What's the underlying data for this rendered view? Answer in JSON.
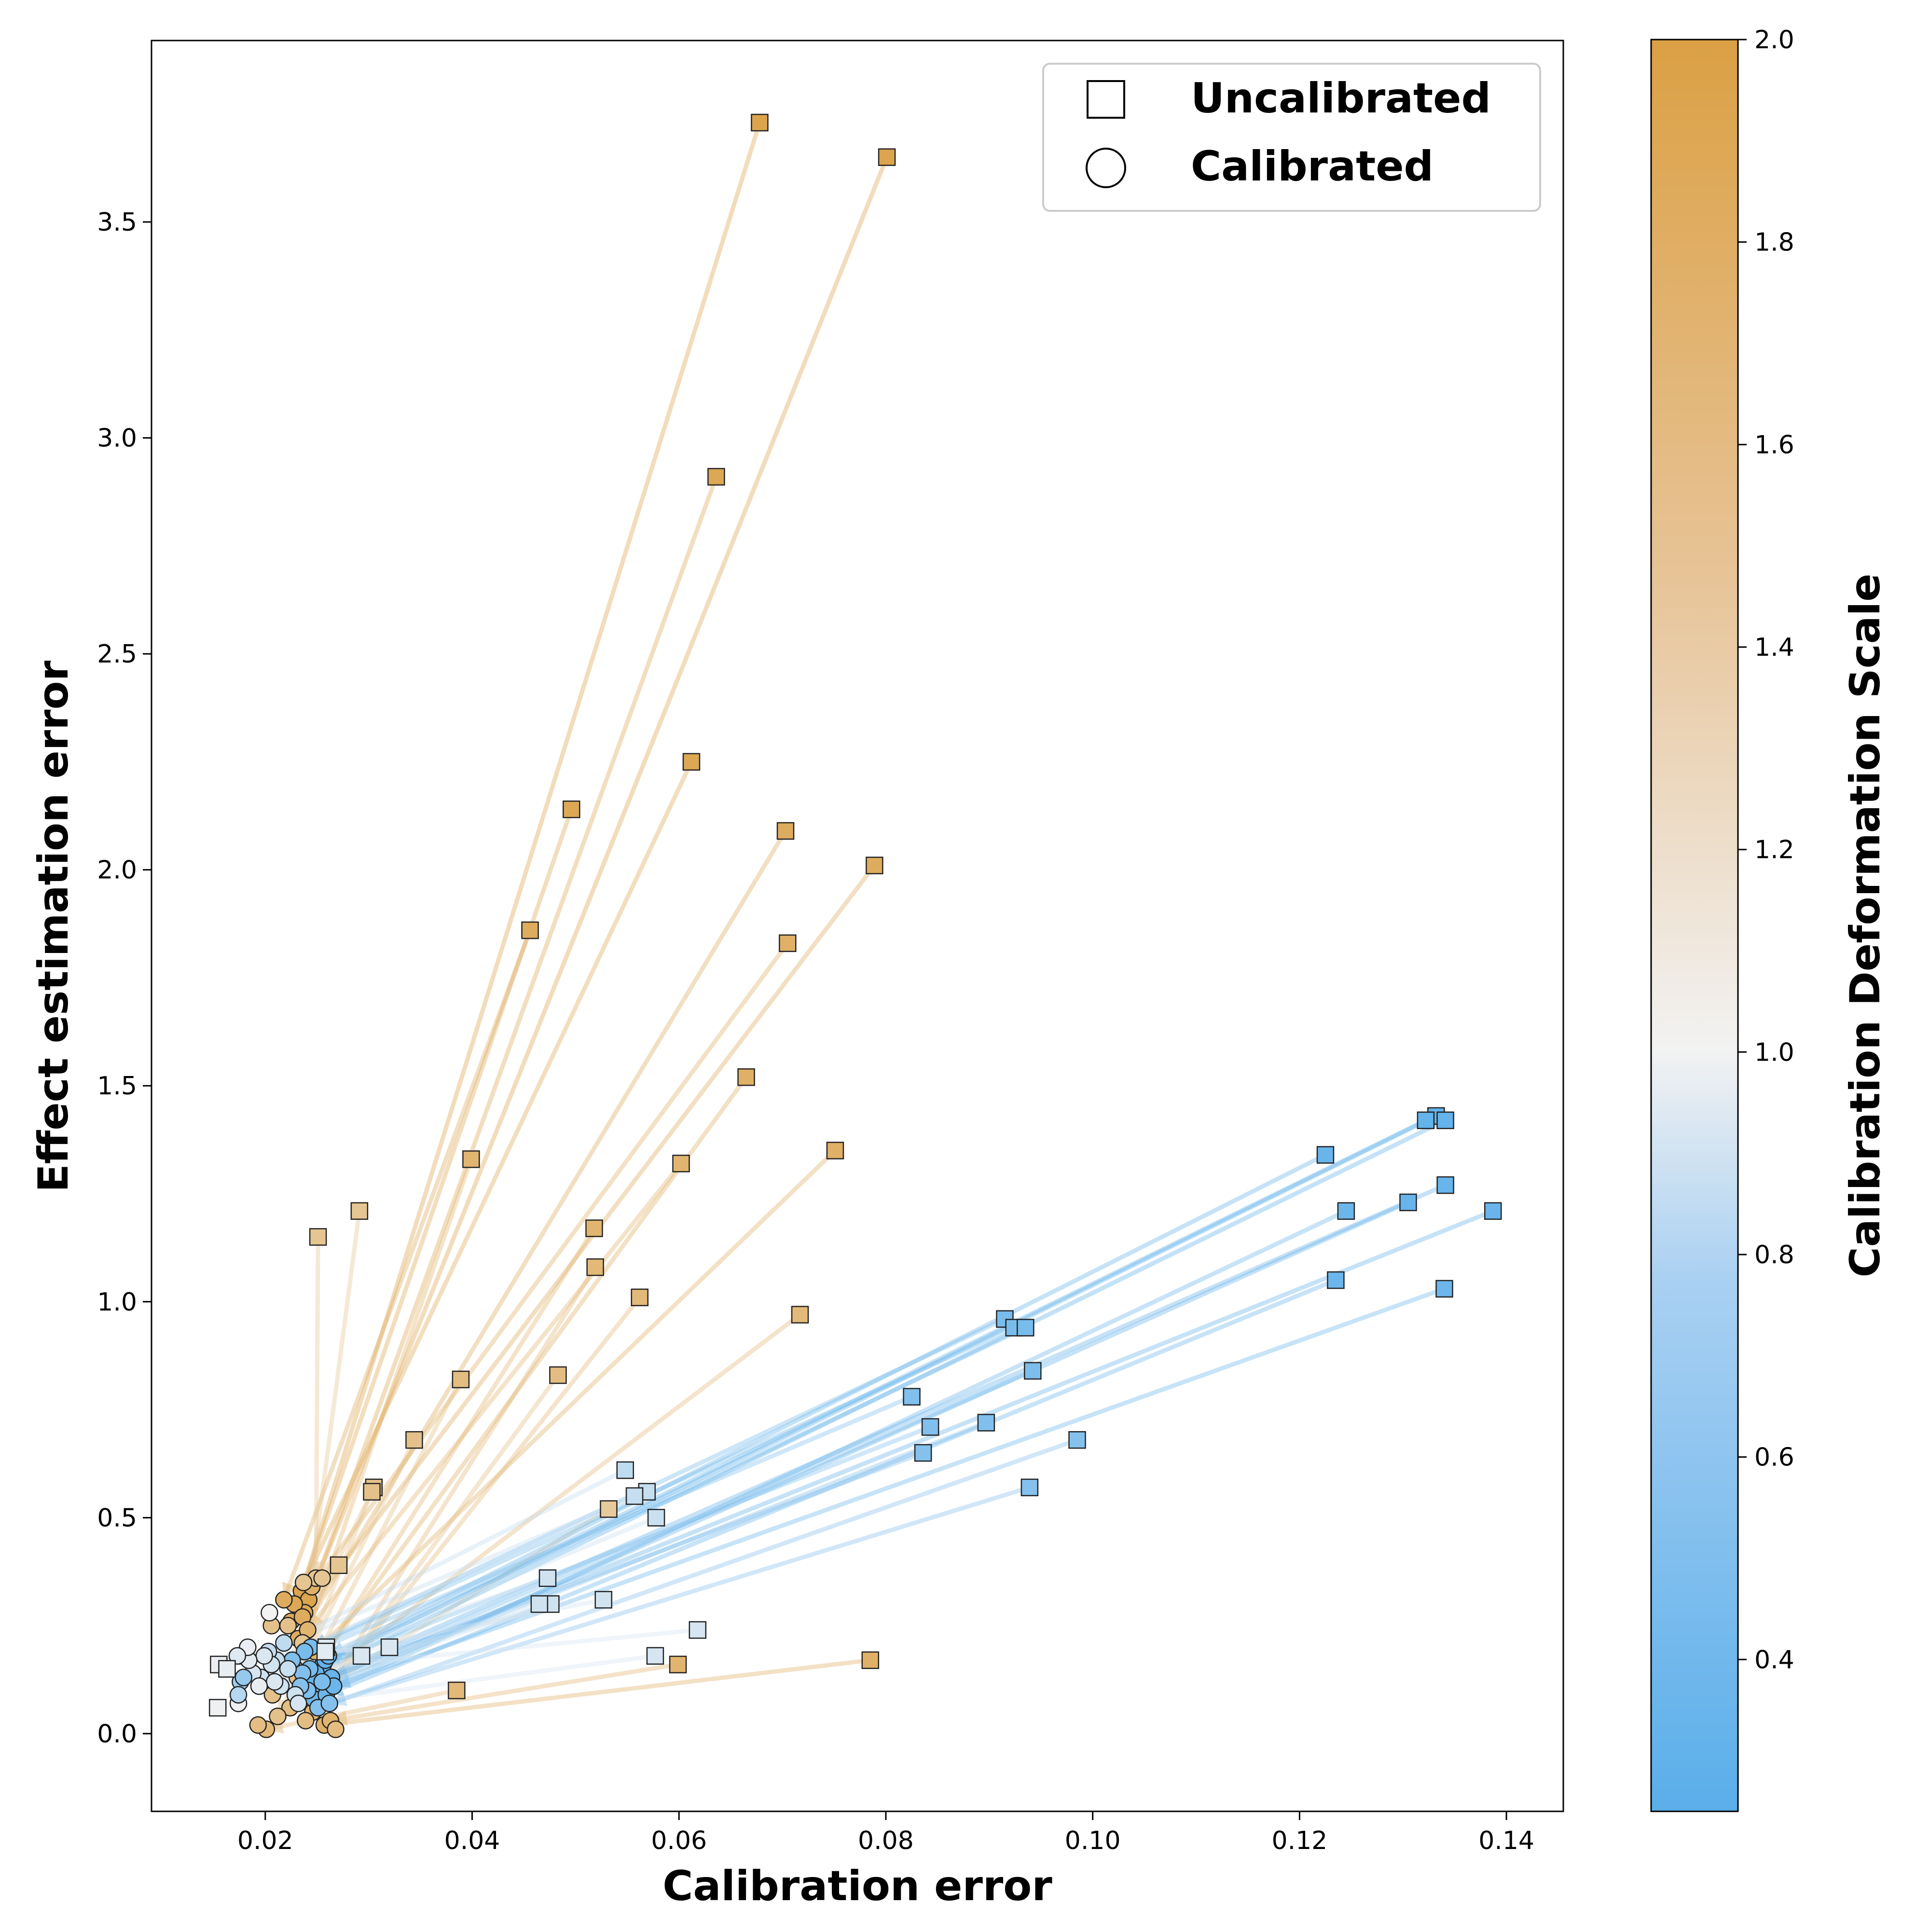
{
  "chart_data": {
    "type": "scatter",
    "xlabel": "Calibration error",
    "ylabel": "Effect estimation error",
    "xlim": [
      0.009,
      0.1455
    ],
    "ylim": [
      -0.18,
      3.92
    ],
    "xticks": [
      0.02,
      0.04,
      0.06,
      0.08,
      0.1,
      0.12,
      0.14
    ],
    "xtick_labels": [
      "0.02",
      "0.04",
      "0.06",
      "0.08",
      "0.10",
      "0.12",
      "0.14"
    ],
    "yticks": [
      0.0,
      0.5,
      1.0,
      1.5,
      2.0,
      2.5,
      3.0,
      3.5
    ],
    "ytick_labels": [
      "0.0",
      "0.5",
      "1.0",
      "1.5",
      "2.0",
      "2.5",
      "3.0",
      "3.5"
    ],
    "grid": false,
    "legend": {
      "placement": "top-right",
      "entries": [
        {
          "label": "Uncalibrated",
          "marker": "square"
        },
        {
          "label": "Calibrated",
          "marker": "circle"
        }
      ]
    },
    "colorbar": {
      "label": "Calibration Deformation Scale",
      "range": [
        0.25,
        2.0
      ],
      "ticks": [
        0.4,
        0.6,
        0.8,
        1.0,
        1.2,
        1.4,
        1.6,
        1.8,
        2.0
      ],
      "tick_labels": [
        "0.4",
        "0.6",
        "0.8",
        "1.0",
        "1.2",
        "1.4",
        "1.6",
        "1.8",
        "2.0"
      ],
      "colors": {
        "low": "#5aaeea",
        "mid": "#f2f2f2",
        "high": "#dba044"
      }
    },
    "pairs": [
      {
        "scale": 1.95,
        "uncal": [
          0.0678,
          3.73
        ],
        "cal": [
          0.0235,
          0.33
        ]
      },
      {
        "scale": 1.95,
        "uncal": [
          0.0801,
          3.65
        ],
        "cal": [
          0.0242,
          0.31
        ]
      },
      {
        "scale": 1.9,
        "uncal": [
          0.0636,
          2.91
        ],
        "cal": [
          0.0238,
          0.28
        ]
      },
      {
        "scale": 1.9,
        "uncal": [
          0.0612,
          2.25
        ],
        "cal": [
          0.0228,
          0.3
        ]
      },
      {
        "scale": 1.9,
        "uncal": [
          0.0496,
          2.14
        ],
        "cal": [
          0.0225,
          0.26
        ]
      },
      {
        "scale": 1.85,
        "uncal": [
          0.0703,
          2.09
        ],
        "cal": [
          0.0232,
          0.22
        ]
      },
      {
        "scale": 1.85,
        "uncal": [
          0.0789,
          2.01
        ],
        "cal": [
          0.0236,
          0.27
        ]
      },
      {
        "scale": 1.85,
        "uncal": [
          0.0456,
          1.86
        ],
        "cal": [
          0.0218,
          0.31
        ]
      },
      {
        "scale": 1.8,
        "uncal": [
          0.0705,
          1.83
        ],
        "cal": [
          0.0245,
          0.34
        ]
      },
      {
        "scale": 1.8,
        "uncal": [
          0.0665,
          1.52
        ],
        "cal": [
          0.0238,
          0.12
        ]
      },
      {
        "scale": 1.8,
        "uncal": [
          0.0751,
          1.35
        ],
        "cal": [
          0.0248,
          0.19
        ]
      },
      {
        "scale": 1.75,
        "uncal": [
          0.0399,
          1.33
        ],
        "cal": [
          0.0229,
          0.15
        ]
      },
      {
        "scale": 1.75,
        "uncal": [
          0.0602,
          1.32
        ],
        "cal": [
          0.0241,
          0.24
        ]
      },
      {
        "scale": 1.75,
        "uncal": [
          0.0518,
          1.17
        ],
        "cal": [
          0.0233,
          0.09
        ]
      },
      {
        "scale": 1.7,
        "uncal": [
          0.0519,
          1.08
        ],
        "cal": [
          0.0246,
          0.05
        ]
      },
      {
        "scale": 1.7,
        "uncal": [
          0.0562,
          1.01
        ],
        "cal": [
          0.0251,
          0.07
        ]
      },
      {
        "scale": 1.7,
        "uncal": [
          0.0717,
          0.97
        ],
        "cal": [
          0.0243,
          0.11
        ]
      },
      {
        "scale": 1.65,
        "uncal": [
          0.0483,
          0.83
        ],
        "cal": [
          0.0239,
          0.03
        ]
      },
      {
        "scale": 1.65,
        "uncal": [
          0.0389,
          0.82
        ],
        "cal": [
          0.0224,
          0.06
        ]
      },
      {
        "scale": 1.6,
        "uncal": [
          0.0344,
          0.68
        ],
        "cal": [
          0.0212,
          0.04
        ]
      },
      {
        "scale": 1.6,
        "uncal": [
          0.0305,
          0.57
        ],
        "cal": [
          0.0207,
          0.09
        ]
      },
      {
        "scale": 1.6,
        "uncal": [
          0.0303,
          0.56
        ],
        "cal": [
          0.0231,
          0.13
        ]
      },
      {
        "scale": 1.55,
        "uncal": [
          0.0291,
          1.21
        ],
        "cal": [
          0.0236,
          0.21
        ]
      },
      {
        "scale": 1.55,
        "uncal": [
          0.0251,
          1.15
        ],
        "cal": [
          0.0249,
          0.36
        ]
      },
      {
        "scale": 1.55,
        "uncal": [
          0.0271,
          0.39
        ],
        "cal": [
          0.0255,
          0.36
        ]
      },
      {
        "scale": 1.5,
        "uncal": [
          0.0532,
          0.52
        ],
        "cal": [
          0.0247,
          0.09
        ]
      },
      {
        "scale": 1.8,
        "uncal": [
          0.0785,
          0.17
        ],
        "cal": [
          0.0257,
          0.02
        ]
      },
      {
        "scale": 1.75,
        "uncal": [
          0.0599,
          0.16
        ],
        "cal": [
          0.0263,
          0.03
        ]
      },
      {
        "scale": 1.7,
        "uncal": [
          0.0385,
          0.1
        ],
        "cal": [
          0.0201,
          0.01
        ]
      },
      {
        "scale": 1.65,
        "uncal": [
          0.0,
          0.0
        ],
        "cal": [
          0.0193,
          0.02
        ],
        "cal_only": true
      },
      {
        "scale": 1.65,
        "uncal": [
          0.0,
          0.0
        ],
        "cal": [
          0.0268,
          0.01
        ],
        "cal_only": true
      },
      {
        "scale": 1.6,
        "uncal": [
          0.0,
          0.0
        ],
        "cal": [
          0.0222,
          0.25
        ],
        "cal_only": true
      },
      {
        "scale": 1.6,
        "uncal": [
          0.0,
          0.0
        ],
        "cal": [
          0.0206,
          0.25
        ],
        "cal_only": true
      },
      {
        "scale": 1.55,
        "uncal": [
          0.0,
          0.0
        ],
        "cal": [
          0.0237,
          0.35
        ],
        "cal_only": true
      },
      {
        "scale": 0.3,
        "uncal": [
          0.1332,
          1.43
        ],
        "cal": [
          0.0256,
          0.16
        ]
      },
      {
        "scale": 0.3,
        "uncal": [
          0.1341,
          1.42
        ],
        "cal": [
          0.0249,
          0.14
        ]
      },
      {
        "scale": 0.3,
        "uncal": [
          0.1322,
          1.42
        ],
        "cal": [
          0.0258,
          0.17
        ]
      },
      {
        "scale": 0.32,
        "uncal": [
          0.1225,
          1.34
        ],
        "cal": [
          0.0261,
          0.18
        ]
      },
      {
        "scale": 0.32,
        "uncal": [
          0.1341,
          1.27
        ],
        "cal": [
          0.0246,
          0.12
        ]
      },
      {
        "scale": 0.32,
        "uncal": [
          0.1305,
          1.23
        ],
        "cal": [
          0.0253,
          0.1
        ]
      },
      {
        "scale": 0.32,
        "uncal": [
          0.1387,
          1.21
        ],
        "cal": [
          0.0264,
          0.13
        ]
      },
      {
        "scale": 0.34,
        "uncal": [
          0.1245,
          1.21
        ],
        "cal": [
          0.0247,
          0.08
        ]
      },
      {
        "scale": 0.34,
        "uncal": [
          0.1235,
          1.05
        ],
        "cal": [
          0.0259,
          0.09
        ]
      },
      {
        "scale": 0.34,
        "uncal": [
          0.134,
          1.03
        ],
        "cal": [
          0.0266,
          0.11
        ]
      },
      {
        "scale": 0.4,
        "uncal": [
          0.0915,
          0.96
        ],
        "cal": [
          0.0244,
          0.2
        ]
      },
      {
        "scale": 0.4,
        "uncal": [
          0.0924,
          0.94
        ],
        "cal": [
          0.0238,
          0.19
        ]
      },
      {
        "scale": 0.4,
        "uncal": [
          0.0935,
          0.94
        ],
        "cal": [
          0.0243,
          0.15
        ]
      },
      {
        "scale": 0.42,
        "uncal": [
          0.0942,
          0.84
        ],
        "cal": [
          0.0255,
          0.12
        ]
      },
      {
        "scale": 0.44,
        "uncal": [
          0.0825,
          0.78
        ],
        "cal": [
          0.0226,
          0.17
        ]
      },
      {
        "scale": 0.44,
        "uncal": [
          0.0843,
          0.71
        ],
        "cal": [
          0.0236,
          0.14
        ]
      },
      {
        "scale": 0.44,
        "uncal": [
          0.0897,
          0.72
        ],
        "cal": [
          0.0241,
          0.1
        ]
      },
      {
        "scale": 0.46,
        "uncal": [
          0.0985,
          0.68
        ],
        "cal": [
          0.0251,
          0.06
        ]
      },
      {
        "scale": 0.46,
        "uncal": [
          0.0836,
          0.65
        ],
        "cal": [
          0.0234,
          0.11
        ]
      },
      {
        "scale": 0.46,
        "uncal": [
          0.0939,
          0.57
        ],
        "cal": [
          0.0262,
          0.07
        ]
      },
      {
        "scale": 0.75,
        "uncal": [
          0.0548,
          0.61
        ],
        "cal": [
          0.0218,
          0.21
        ]
      },
      {
        "scale": 0.78,
        "uncal": [
          0.0569,
          0.56
        ],
        "cal": [
          0.0211,
          0.17
        ]
      },
      {
        "scale": 0.78,
        "uncal": [
          0.0557,
          0.55
        ],
        "cal": [
          0.0203,
          0.19
        ]
      },
      {
        "scale": 0.8,
        "uncal": [
          0.0578,
          0.5
        ],
        "cal": [
          0.0222,
          0.15
        ]
      },
      {
        "scale": 0.82,
        "uncal": [
          0.0473,
          0.36
        ],
        "cal": [
          0.0196,
          0.13
        ]
      },
      {
        "scale": 0.82,
        "uncal": [
          0.0476,
          0.3
        ],
        "cal": [
          0.0215,
          0.11
        ]
      },
      {
        "scale": 0.82,
        "uncal": [
          0.0465,
          0.3
        ],
        "cal": [
          0.0229,
          0.09
        ]
      },
      {
        "scale": 0.84,
        "uncal": [
          0.0527,
          0.31
        ],
        "cal": [
          0.0206,
          0.16
        ]
      },
      {
        "scale": 0.86,
        "uncal": [
          0.0618,
          0.24
        ],
        "cal": [
          0.0188,
          0.14
        ]
      },
      {
        "scale": 0.86,
        "uncal": [
          0.0577,
          0.18
        ],
        "cal": [
          0.0232,
          0.07
        ]
      },
      {
        "scale": 0.88,
        "uncal": [
          0.032,
          0.2
        ],
        "cal": [
          0.0199,
          0.18
        ]
      },
      {
        "scale": 0.88,
        "uncal": [
          0.0293,
          0.18
        ],
        "cal": [
          0.0209,
          0.12
        ]
      },
      {
        "scale": 0.9,
        "uncal": [
          0.0259,
          0.2
        ],
        "cal": [
          0.0175,
          0.18
        ]
      },
      {
        "scale": 0.92,
        "uncal": [
          0.0258,
          0.19
        ],
        "cal": [
          0.0184,
          0.17
        ]
      },
      {
        "scale": 0.96,
        "uncal": [
          0.0155,
          0.16
        ],
        "cal": [
          0.0183,
          0.2
        ]
      },
      {
        "scale": 0.98,
        "uncal": [
          0.0154,
          0.06
        ],
        "cal": [
          0.0174,
          0.07
        ]
      },
      {
        "scale": 0.95,
        "uncal": [
          0.0163,
          0.15
        ],
        "cal": [
          0.0194,
          0.11
        ]
      },
      {
        "scale": 0.6,
        "uncal": [
          0.0,
          0.0
        ],
        "cal": [
          0.0176,
          0.12
        ],
        "cal_only": true
      },
      {
        "scale": 0.55,
        "uncal": [
          0.0,
          0.0
        ],
        "cal": [
          0.0179,
          0.13
        ],
        "cal_only": true
      },
      {
        "scale": 0.7,
        "uncal": [
          0.0,
          0.0
        ],
        "cal": [
          0.0174,
          0.09
        ],
        "cal_only": true
      },
      {
        "scale": 1.0,
        "uncal": [
          0.0,
          0.0
        ],
        "cal": [
          0.0204,
          0.28
        ],
        "cal_only": true
      },
      {
        "scale": 0.9,
        "uncal": [
          0.0,
          0.0
        ],
        "cal": [
          0.0173,
          0.18
        ],
        "cal_only": true
      }
    ]
  }
}
